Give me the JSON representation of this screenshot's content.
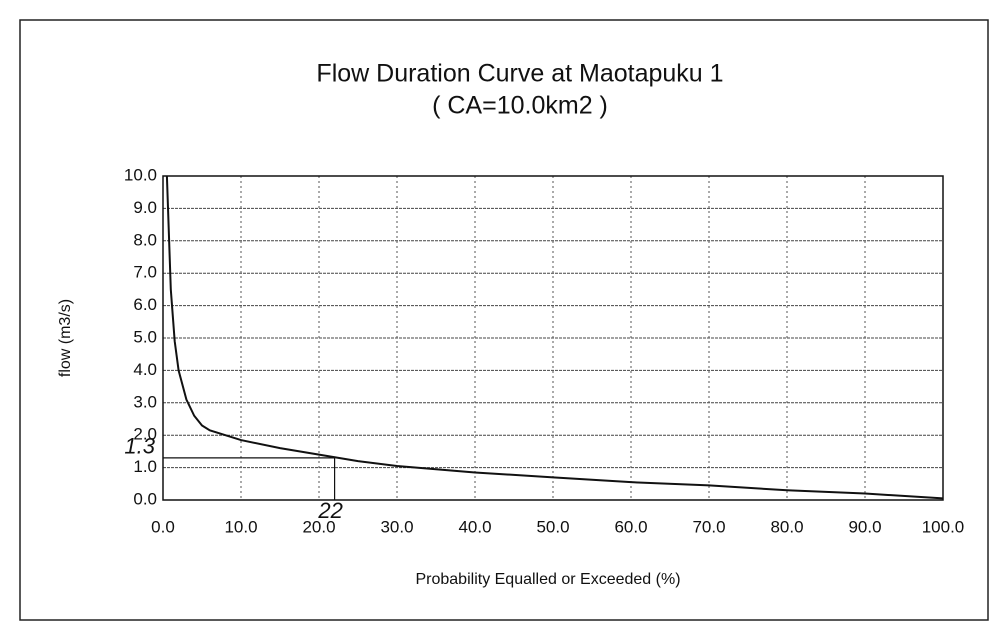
{
  "chart_data": {
    "type": "line",
    "title": "Flow Duration Curve at Maotapuku 1",
    "subtitle": "( CA=10.0km2 )",
    "x_label": "Probability Equalled or Exceeded (%)",
    "y_label": "flow (m3/s)",
    "x": [
      0.5,
      1,
      1.5,
      2,
      3,
      4,
      5,
      6,
      8,
      10,
      15,
      20,
      25,
      30,
      40,
      50,
      60,
      70,
      80,
      90,
      100
    ],
    "series": [
      {
        "name": "flow",
        "color": "#111111",
        "values": [
          10,
          6.5,
          4.9,
          4.0,
          3.1,
          2.6,
          2.3,
          2.15,
          2.0,
          1.85,
          1.6,
          1.4,
          1.2,
          1.05,
          0.85,
          0.7,
          0.55,
          0.45,
          0.3,
          0.2,
          0.05
        ]
      }
    ],
    "xlim": [
      0,
      100
    ],
    "ylim": [
      0,
      10
    ],
    "xticks": [
      {
        "value": 0,
        "label": "0.0"
      },
      {
        "value": 10,
        "label": "10.0"
      },
      {
        "value": 20,
        "label": "20.0"
      },
      {
        "value": 30,
        "label": "30.0"
      },
      {
        "value": 40,
        "label": "40.0"
      },
      {
        "value": 50,
        "label": "50.0"
      },
      {
        "value": 60,
        "label": "60.0"
      },
      {
        "value": 70,
        "label": "70.0"
      },
      {
        "value": 80,
        "label": "80.0"
      },
      {
        "value": 90,
        "label": "90.0"
      },
      {
        "value": 100,
        "label": "100.0"
      }
    ],
    "yticks": [
      {
        "value": 0,
        "label": "0.0"
      },
      {
        "value": 1,
        "label": "1.0"
      },
      {
        "value": 2,
        "label": "2.0"
      },
      {
        "value": 3,
        "label": "3.0"
      },
      {
        "value": 4,
        "label": "4.0"
      },
      {
        "value": 5,
        "label": "5.0"
      },
      {
        "value": 6,
        "label": "6.0"
      },
      {
        "value": 7,
        "label": "7.0"
      },
      {
        "value": 8,
        "label": "8.0"
      },
      {
        "value": 9,
        "label": "9.0"
      },
      {
        "value": 10,
        "label": "10.0"
      }
    ],
    "grid": true,
    "reference": {
      "x": 22,
      "y": 1.3
    }
  }
}
